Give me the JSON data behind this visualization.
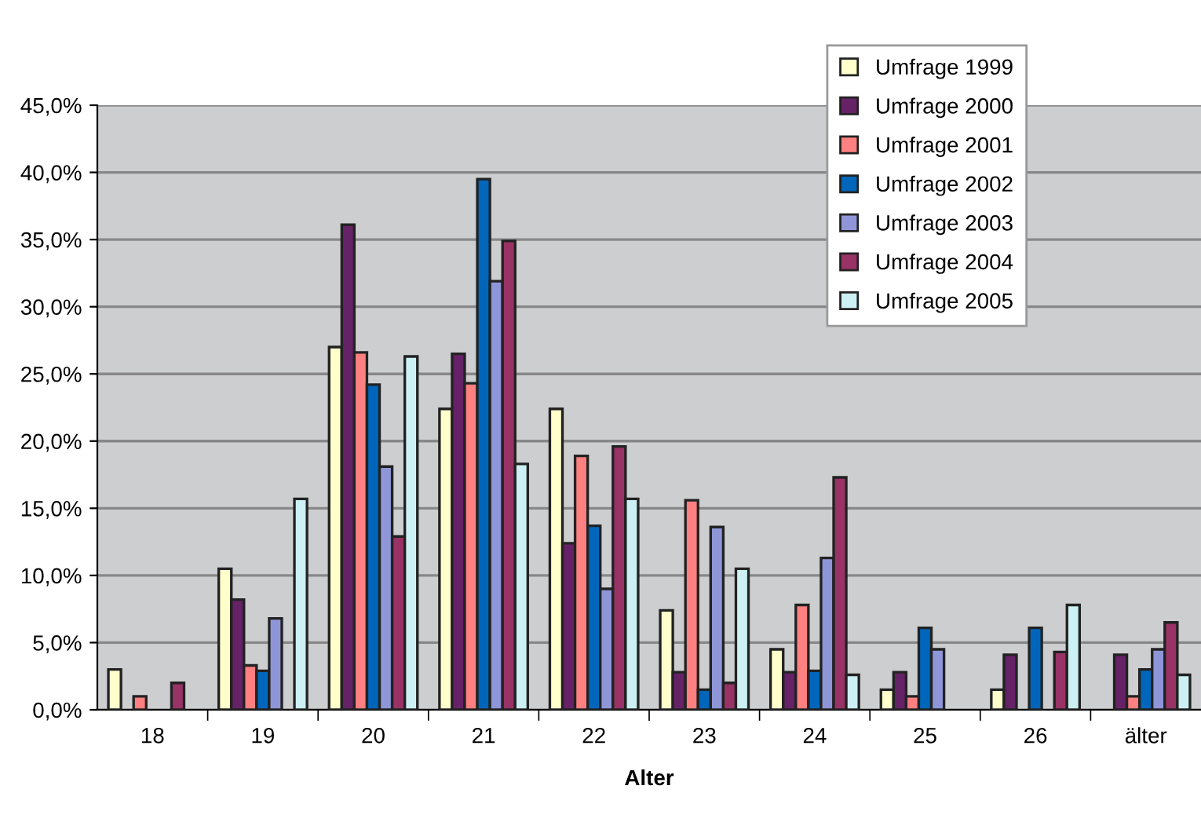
{
  "chart_data": {
    "type": "bar",
    "xlabel": "Alter",
    "categories": [
      "18",
      "19",
      "20",
      "21",
      "22",
      "23",
      "24",
      "25",
      "26",
      "älter"
    ],
    "series": [
      {
        "name": "Umfrage 1999",
        "color": "#ffffcc",
        "values": [
          3.0,
          10.5,
          27.0,
          22.4,
          22.4,
          7.4,
          4.5,
          1.5,
          1.5,
          null
        ]
      },
      {
        "name": "Umfrage 2000",
        "color": "#662266",
        "values": [
          null,
          8.2,
          36.1,
          26.5,
          12.4,
          2.8,
          2.8,
          2.8,
          4.1,
          4.1
        ]
      },
      {
        "name": "Umfrage 2001",
        "color": "#ff8080",
        "values": [
          1.0,
          3.3,
          26.6,
          24.3,
          18.9,
          15.6,
          7.8,
          1.0,
          null,
          1.0
        ]
      },
      {
        "name": "Umfrage 2002",
        "color": "#0066bb",
        "values": [
          null,
          2.9,
          24.2,
          39.5,
          13.7,
          1.5,
          2.9,
          6.1,
          6.1,
          3.0
        ]
      },
      {
        "name": "Umfrage 2003",
        "color": "#8f96d8",
        "values": [
          null,
          6.8,
          18.1,
          31.9,
          9.0,
          13.6,
          11.3,
          4.5,
          null,
          4.5
        ]
      },
      {
        "name": "Umfrage 2004",
        "color": "#993366",
        "values": [
          2.0,
          null,
          12.9,
          34.9,
          19.6,
          2.0,
          17.3,
          null,
          4.3,
          6.5
        ]
      },
      {
        "name": "Umfrage 2005",
        "color": "#ccf0f4",
        "values": [
          null,
          15.7,
          26.3,
          18.3,
          15.7,
          10.5,
          2.6,
          null,
          7.8,
          2.6
        ]
      }
    ],
    "ylim": [
      0,
      45
    ],
    "yticks": [
      {
        "value": 0,
        "label": "0,0%"
      },
      {
        "value": 5,
        "label": "5,0%"
      },
      {
        "value": 10,
        "label": "10,0%"
      },
      {
        "value": 15,
        "label": "15,0%"
      },
      {
        "value": 20,
        "label": "20,0%"
      },
      {
        "value": 25,
        "label": "25,0%"
      },
      {
        "value": 30,
        "label": "30,0%"
      },
      {
        "value": 35,
        "label": "35,0%"
      },
      {
        "value": 40,
        "label": "40,0%"
      },
      {
        "value": 45,
        "label": "45,0%"
      }
    ],
    "grid": "y",
    "legend": "top right"
  }
}
